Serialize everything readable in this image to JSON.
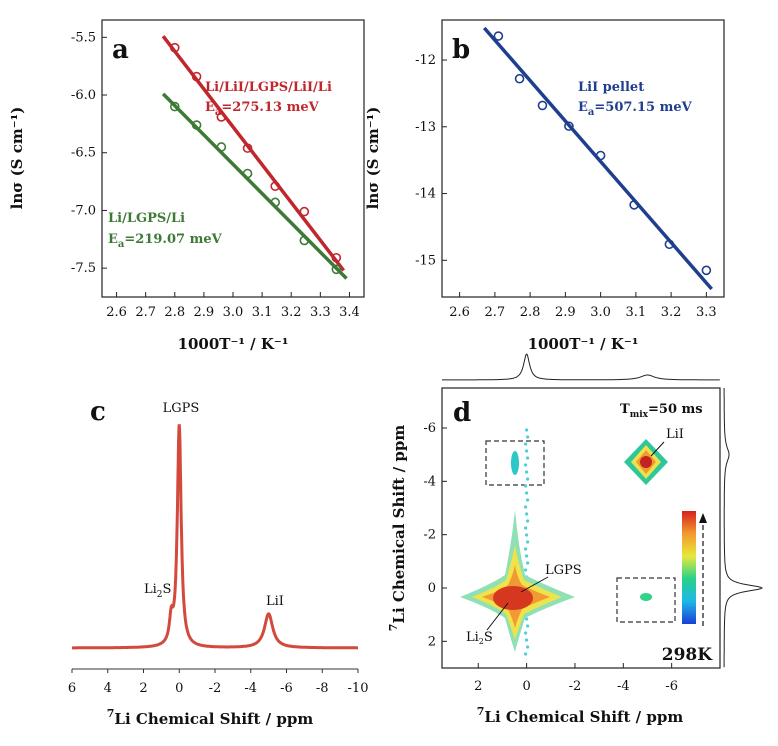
{
  "chart_data": [
    {
      "panel": "a",
      "type": "scatter",
      "xlabel": "1000T⁻¹ / K⁻¹",
      "ylabel": "lnσ (S cm⁻¹)",
      "xlim": [
        2.55,
        3.45
      ],
      "ylim": [
        -7.75,
        -5.35
      ],
      "xticks": [
        "2.6",
        "2.7",
        "2.8",
        "2.9",
        "3.0",
        "3.1",
        "3.2",
        "3.3",
        "3.4"
      ],
      "yticks": [
        "-5.5",
        "-6.0",
        "-6.5",
        "-7.0",
        "-7.5"
      ],
      "series": [
        {
          "name": "Li/LiI/LGPS/LiI/Li",
          "ea_prefix": "E",
          "ea_sub": "a",
          "ea_value": "=275.13 meV",
          "color": "#c0272d",
          "x": [
            2.8,
            2.875,
            2.96,
            3.05,
            3.145,
            3.245,
            3.355
          ],
          "y": [
            -5.59,
            -5.84,
            -6.19,
            -6.46,
            -6.79,
            -7.01,
            -7.41
          ],
          "fit": [
            [
              2.76,
              -5.49
            ],
            [
              3.38,
              -7.52
            ]
          ]
        },
        {
          "name": "Li/LGPS/Li",
          "ea_prefix": "E",
          "ea_sub": "a",
          "ea_value": "=219.07 meV",
          "color": "#3d7a35",
          "x": [
            2.8,
            2.875,
            2.96,
            3.05,
            3.145,
            3.245,
            3.355
          ],
          "y": [
            -6.1,
            -6.26,
            -6.45,
            -6.68,
            -6.93,
            -7.26,
            -7.51
          ],
          "fit": [
            [
              2.76,
              -5.99
            ],
            [
              3.39,
              -7.59
            ]
          ]
        }
      ]
    },
    {
      "panel": "b",
      "type": "scatter",
      "xlabel": "1000T⁻¹ / K⁻¹",
      "ylabel": "lnσ (S cm⁻¹)",
      "xlim": [
        2.55,
        3.35
      ],
      "ylim": [
        -15.55,
        -11.4
      ],
      "xticks": [
        "2.6",
        "2.7",
        "2.8",
        "2.9",
        "3.0",
        "3.1",
        "3.2",
        "3.3"
      ],
      "yticks": [
        "-12",
        "-13",
        "-14",
        "-15"
      ],
      "series": [
        {
          "name": "LiI pellet",
          "ea_prefix": "E",
          "ea_sub": "a",
          "ea_value": "=507.15 meV",
          "color": "#1f3f8e",
          "x": [
            2.71,
            2.77,
            2.835,
            2.91,
            3.0,
            3.095,
            3.195,
            3.3
          ],
          "y": [
            -11.64,
            -12.28,
            -12.68,
            -12.99,
            -13.43,
            -14.17,
            -14.76,
            -15.15
          ],
          "fit": [
            [
              2.67,
              -11.52
            ],
            [
              3.315,
              -15.43
            ]
          ]
        }
      ]
    },
    {
      "panel": "c",
      "type": "line",
      "xlabel": "Li Chemical Shift / ppm",
      "xlabel_sup": "7",
      "xlim": [
        6,
        -10
      ],
      "xticks": [
        "6",
        "4",
        "2",
        "0",
        "-2",
        "-4",
        "-6",
        "-8",
        "-10"
      ],
      "color": "#d24a3c",
      "peaks": [
        {
          "label": "LGPS",
          "position_ppm": 0.0
        },
        {
          "label_main": "Li",
          "label_sub": "2",
          "label_end": "S",
          "position_ppm": 0.45
        },
        {
          "label": "LiI",
          "position_ppm": -5.0
        }
      ]
    },
    {
      "panel": "d",
      "type": "heatmap",
      "xlabel": "Li Chemical Shift / ppm",
      "ylabel": "Li Chemical Shift / ppm",
      "label_sup": "7",
      "xlim": [
        3.5,
        -8
      ],
      "ylim": [
        -7.5,
        3.0
      ],
      "xticks": [
        "2",
        "0",
        "-2",
        "-4",
        "-6"
      ],
      "yticks": [
        "-6",
        "-4",
        "-2",
        "0",
        "2"
      ],
      "mixing_prefix": "T",
      "mixing_sub": "mix",
      "mixing_value": "=50 ms",
      "temperature": "298K",
      "peak_labels": {
        "lii": "LiI",
        "lgps": "LGPS",
        "li2s_main": "Li",
        "li2s_sub": "2",
        "li2s_end": "S"
      },
      "peaks": [
        {
          "label": "LGPS",
          "x_ppm": 0.0,
          "y_ppm": 0.0
        },
        {
          "label": "LiI",
          "x_ppm": -5.0,
          "y_ppm": -5.0
        },
        {
          "label": "cross-peak (upper)",
          "x_ppm": 0.0,
          "y_ppm": -5.0
        },
        {
          "label": "cross-peak (lower)",
          "x_ppm": -5.0,
          "y_ppm": 0.0
        }
      ]
    }
  ],
  "panel_labels": [
    "a",
    "b",
    "c",
    "d"
  ]
}
